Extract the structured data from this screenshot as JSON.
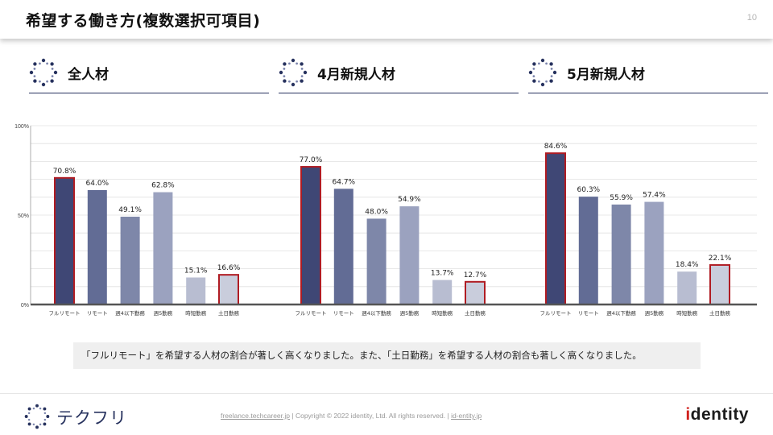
{
  "header": {
    "title": "希望する働き方(複数選択可項目)",
    "page_number": "10"
  },
  "sections": [
    {
      "title": "全人材"
    },
    {
      "title": "4月新規人材"
    },
    {
      "title": "5月新規人材"
    }
  ],
  "chart_data": {
    "type": "bar",
    "yaxis_ticks": [
      "100%",
      "50%",
      "0%"
    ],
    "ylim": [
      0,
      100
    ],
    "categories": [
      "フルリモート",
      "リモート",
      "週4以下勤務",
      "週5勤務",
      "時短勤務",
      "土日勤務"
    ],
    "highlighted_categories": [
      "フルリモート",
      "土日勤務"
    ],
    "bar_colors": [
      "#3f4775",
      "#626c95",
      "#7e87a9",
      "#9ba2bf",
      "#b8bdd1",
      "#c9cddc"
    ],
    "highlight_border_color": "#b01c23",
    "series": [
      {
        "name": "全人材",
        "values": [
          70.8,
          64.0,
          49.1,
          62.8,
          15.1,
          16.6
        ],
        "labels": [
          "70.8%",
          "64.0%",
          "49.1%",
          "62.8%",
          "15.1%",
          "16.6%"
        ]
      },
      {
        "name": "4月新規人材",
        "values": [
          77.0,
          64.7,
          48.0,
          54.9,
          13.7,
          12.7
        ],
        "labels": [
          "77.0%",
          "64.7%",
          "48.0%",
          "54.9%",
          "13.7%",
          "12.7%"
        ]
      },
      {
        "name": "5月新規人材",
        "values": [
          84.6,
          60.3,
          55.9,
          57.4,
          18.4,
          22.1
        ],
        "labels": [
          "84.6%",
          "60.3%",
          "55.9%",
          "57.4%",
          "18.4%",
          "22.1%"
        ]
      }
    ]
  },
  "note": "「フルリモート」を希望する人材の割合が著しく高くなりました。また、「土日勤務」を希望する人材の割合も著しく高くなりました。",
  "footer": {
    "logo_text": "テクフリ",
    "link1": "freelance.techcareer.jp",
    "separator": "|",
    "copyright": "Copyright © 2022 identity, Ltd. All rights reserved.",
    "link2": "id-entity.jp",
    "brand_first": "i",
    "brand_rest": "dentity"
  },
  "colors": {
    "navy": "#27325e",
    "highlight": "#b01c23"
  }
}
